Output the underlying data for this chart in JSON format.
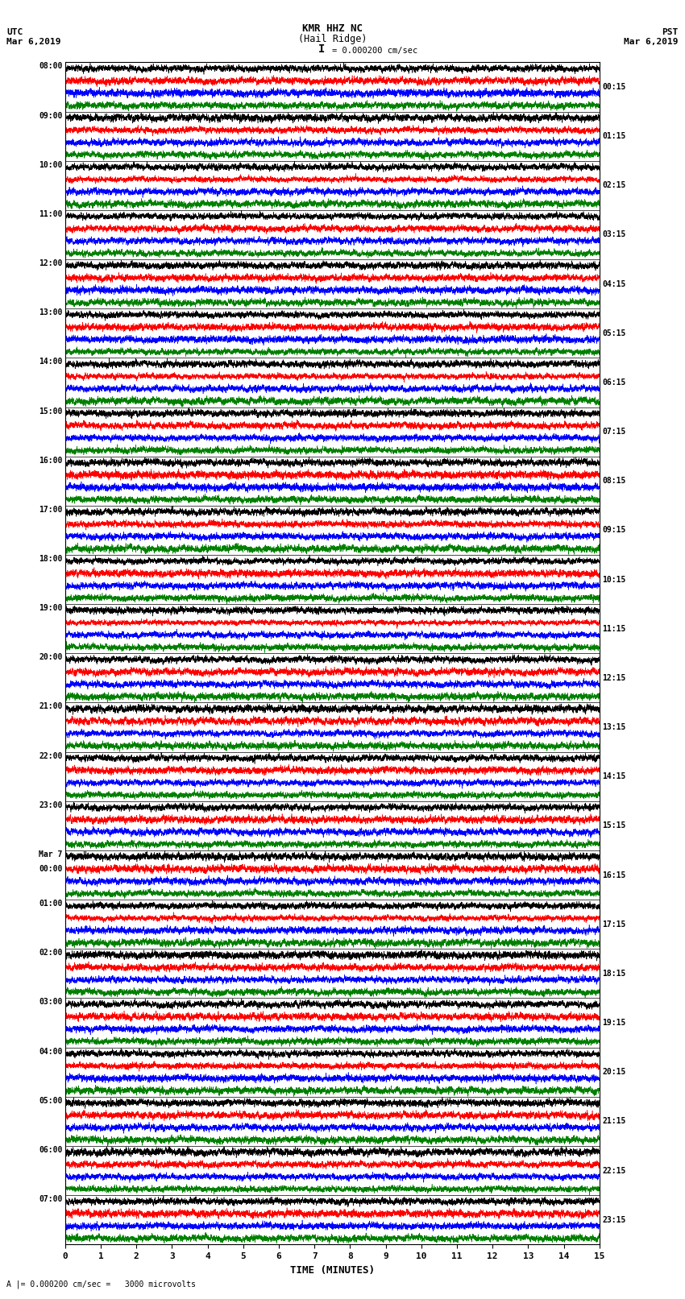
{
  "title_line1": "KMR HHZ NC",
  "title_line2": "(Hail Ridge)",
  "scale_label": "= 0.000200 cm/sec",
  "utc_label": "UTC",
  "utc_date": "Mar 6,2019",
  "pst_label": "PST",
  "pst_date": "Mar 6,2019",
  "bottom_label": "A |= 0.000200 cm/sec =   3000 microvolts",
  "xlabel": "TIME (MINUTES)",
  "left_times": [
    "08:00",
    "09:00",
    "10:00",
    "11:00",
    "12:00",
    "13:00",
    "14:00",
    "15:00",
    "16:00",
    "17:00",
    "18:00",
    "19:00",
    "20:00",
    "21:00",
    "22:00",
    "23:00",
    "Mar 7",
    "01:00",
    "02:00",
    "03:00",
    "04:00",
    "05:00",
    "06:00",
    "07:00"
  ],
  "left_times_sub": [
    "",
    "",
    "",
    "",
    "",
    "",
    "",
    "",
    "",
    "",
    "",
    "",
    "",
    "",
    "",
    "",
    "00:00",
    "",
    "",
    "",
    "",
    "",
    "",
    ""
  ],
  "right_times": [
    "00:15",
    "01:15",
    "02:15",
    "03:15",
    "04:15",
    "05:15",
    "06:15",
    "07:15",
    "08:15",
    "09:15",
    "10:15",
    "11:15",
    "12:15",
    "13:15",
    "14:15",
    "15:15",
    "16:15",
    "17:15",
    "18:15",
    "19:15",
    "20:15",
    "21:15",
    "22:15",
    "23:15"
  ],
  "n_rows": 24,
  "bg_color": "#ffffff",
  "colors": [
    "black",
    "red",
    "blue",
    "green"
  ],
  "fig_width": 8.5,
  "fig_height": 16.13,
  "dpi": 100,
  "xmin": 0,
  "xmax": 15,
  "xticks": [
    0,
    1,
    2,
    3,
    4,
    5,
    6,
    7,
    8,
    9,
    10,
    11,
    12,
    13,
    14,
    15
  ]
}
